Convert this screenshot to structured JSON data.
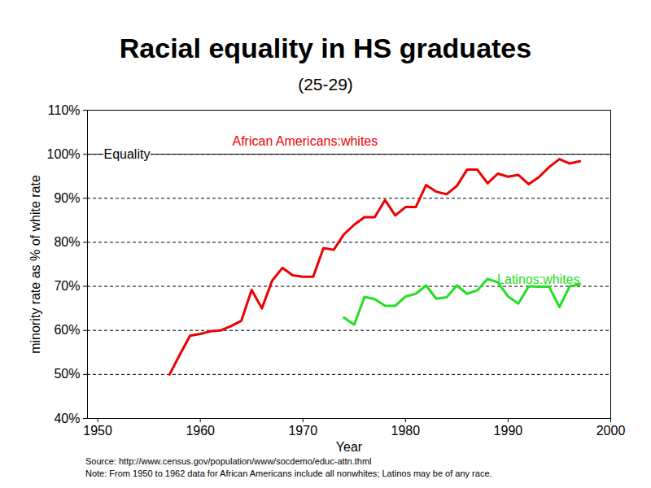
{
  "chart_data": {
    "type": "line",
    "title": "Racial equality in HS graduates",
    "subtitle": "(25-29)",
    "x_label": "Year",
    "y_label": "minority rate as % of white rate",
    "source": "Source: http://www.census.gov/population/www/socdemo/educ-attn.thml",
    "note": "Note: From 1950 to 1962 data for African Americans include all nonwhites;  Latinos may be of any race.",
    "x": [
      1957,
      1958,
      1959,
      1960,
      1961,
      1962,
      1963,
      1964,
      1965,
      1966,
      1967,
      1968,
      1969,
      1970,
      1971,
      1972,
      1973,
      1974,
      1975,
      1976,
      1977,
      1978,
      1979,
      1980,
      1981,
      1982,
      1983,
      1984,
      1985,
      1986,
      1987,
      1988,
      1989,
      1990,
      1991,
      1992,
      1993,
      1994,
      1995,
      1996,
      1997
    ],
    "series": [
      {
        "name": "African Americans:whites",
        "color": "#ee0000",
        "values": [
          50,
          54.5,
          58.8,
          59.2,
          59.8,
          60,
          61,
          62.2,
          69.2,
          65,
          71.3,
          74.2,
          72.5,
          72.2,
          72.2,
          78.7,
          78.3,
          81.8,
          84,
          85.7,
          85.7,
          89.6,
          86.1,
          88,
          88,
          93,
          91.5,
          90.9,
          92.8,
          96.5,
          96.5,
          93.4,
          95.6,
          94.9,
          95.3,
          93.2,
          94.8,
          97.1,
          98.9,
          97.9,
          98.4
        ]
      },
      {
        "name": "Latinos:whites",
        "color": "#22e022",
        "values": [
          null,
          null,
          null,
          null,
          null,
          null,
          null,
          null,
          null,
          null,
          null,
          null,
          null,
          null,
          null,
          null,
          null,
          62.9,
          61.3,
          67.6,
          67.1,
          65.6,
          65.6,
          67.7,
          68.3,
          70.2,
          67.2,
          67.5,
          70.2,
          68.3,
          69.1,
          71.7,
          70.9,
          67.7,
          66.1,
          70,
          69.9,
          69.9,
          65.3,
          70,
          70.5
        ]
      }
    ],
    "annotations": [
      {
        "text": "Equality",
        "y": 100
      }
    ],
    "xlim": [
      1949,
      2000
    ],
    "xticks": [
      1950,
      1960,
      1970,
      1980,
      1990,
      2000
    ],
    "ylim": [
      40,
      110
    ],
    "yticks": [
      {
        "value": 40,
        "label": "40%"
      },
      {
        "value": 50,
        "label": "50%"
      },
      {
        "value": 60,
        "label": "60%"
      },
      {
        "value": 70,
        "label": "70%"
      },
      {
        "value": 80,
        "label": "80%"
      },
      {
        "value": 90,
        "label": "90%"
      },
      {
        "value": 100,
        "label": "100%"
      },
      {
        "value": 110,
        "label": "110%"
      }
    ],
    "grid": true
  }
}
